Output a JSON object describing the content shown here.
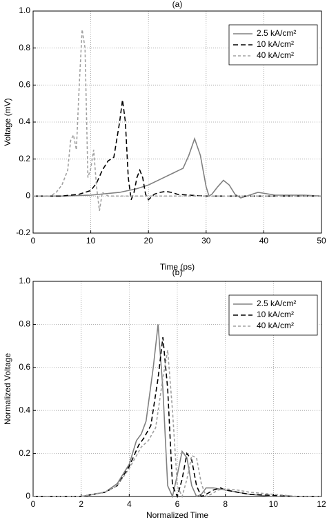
{
  "chart_data": [
    {
      "type": "line",
      "title": "(a)",
      "x_label": "Time (ps)",
      "y_label": "Voltage (mV)",
      "xlim": [
        0,
        50
      ],
      "xticks": [
        0,
        10,
        20,
        30,
        40,
        50
      ],
      "ylim": [
        -0.2,
        1.0
      ],
      "yticks": [
        -0.2,
        0,
        0.2,
        0.4,
        0.6,
        0.8,
        {
          "value": 1.0,
          "label": "1.0"
        }
      ],
      "grid": true,
      "legend": "upper right",
      "series": [
        {
          "name": "2.5 kA/cm²",
          "color": "#808080",
          "line_style": "solid",
          "x": [
            0,
            5,
            10,
            15,
            18,
            20,
            22,
            24,
            26,
            27,
            28,
            29,
            30,
            30.5,
            31,
            32,
            33,
            34,
            35,
            36,
            37,
            38,
            39,
            40,
            42,
            45,
            47,
            50
          ],
          "values": [
            0,
            0,
            0.005,
            0.02,
            0.04,
            0.06,
            0.09,
            0.12,
            0.15,
            0.22,
            0.31,
            0.22,
            0.05,
            0,
            0.01,
            0.05,
            0.085,
            0.06,
            0.01,
            -0.01,
            0,
            0.01,
            0.02,
            0.015,
            0.005,
            0.005,
            0.005,
            0
          ]
        },
        {
          "name": "10 kA/cm²",
          "color": "#000000",
          "line_style": "dashed",
          "x": [
            0,
            5,
            8,
            10,
            11,
            12,
            13,
            14,
            15,
            15.5,
            16,
            16.5,
            17,
            17.5,
            18,
            18.5,
            19,
            19.5,
            20,
            21,
            22,
            23,
            24,
            25,
            27,
            30,
            35,
            40,
            50
          ],
          "values": [
            0,
            0,
            0.01,
            0.03,
            0.07,
            0.14,
            0.19,
            0.21,
            0.4,
            0.52,
            0.4,
            0.1,
            -0.02,
            0.02,
            0.1,
            0.14,
            0.1,
            0.01,
            -0.02,
            0.01,
            0.02,
            0.025,
            0.02,
            0.01,
            0.005,
            0,
            0,
            0,
            0
          ]
        },
        {
          "name": "40 kA/cm²",
          "color": "#a0a0a0",
          "line_style": "short-dashed",
          "x": [
            0,
            3,
            4,
            5,
            6,
            6.5,
            7,
            7.5,
            8,
            8.5,
            9,
            9.5,
            10,
            10.5,
            11,
            11.5,
            12,
            13,
            15,
            20,
            50
          ],
          "values": [
            0,
            0,
            0.02,
            0.06,
            0.14,
            0.3,
            0.33,
            0.25,
            0.6,
            0.9,
            0.8,
            0.1,
            0.15,
            0.25,
            0.05,
            -0.08,
            0.02,
            0,
            0,
            0,
            0
          ]
        }
      ]
    },
    {
      "type": "line",
      "title": "(b)",
      "x_label": "Normalized Time",
      "y_label": "Normalized Voltage",
      "xlim": [
        0,
        12
      ],
      "xticks": [
        0,
        2,
        4,
        6,
        8,
        10,
        12
      ],
      "ylim": [
        0,
        1.0
      ],
      "yticks": [
        0,
        0.2,
        0.4,
        0.6,
        0.8,
        {
          "value": 1.0,
          "label": "1.0"
        }
      ],
      "grid": true,
      "legend": "upper right",
      "series": [
        {
          "name": "2.5 kA/cm²",
          "color": "#808080",
          "line_style": "solid",
          "x": [
            0,
            2,
            3,
            3.5,
            4,
            4.3,
            4.5,
            4.7,
            5,
            5.2,
            5.4,
            5.6,
            5.8,
            6,
            6.2,
            6.4,
            6.6,
            6.8,
            7,
            7.2,
            7.5,
            8,
            9,
            10,
            12
          ],
          "values": [
            0,
            0,
            0.02,
            0.06,
            0.15,
            0.26,
            0.29,
            0.35,
            0.6,
            0.8,
            0.5,
            0.05,
            0,
            0.1,
            0.21,
            0.18,
            0.05,
            0,
            0.01,
            0.04,
            0.04,
            0.03,
            0.01,
            0,
            0
          ]
        },
        {
          "name": "10 kA/cm²",
          "color": "#000000",
          "line_style": "dashed",
          "x": [
            0,
            2,
            3,
            3.5,
            4,
            4.4,
            4.6,
            4.9,
            5.2,
            5.4,
            5.6,
            5.8,
            6,
            6.2,
            6.4,
            6.6,
            6.8,
            7,
            7.2,
            7.5,
            7.8,
            8,
            9,
            10,
            11,
            12
          ],
          "values": [
            0,
            0,
            0.02,
            0.05,
            0.14,
            0.24,
            0.27,
            0.33,
            0.55,
            0.74,
            0.5,
            0.05,
            0,
            0.08,
            0.2,
            0.17,
            0.05,
            0,
            0.01,
            0.03,
            0.04,
            0.03,
            0.01,
            0.005,
            0,
            0
          ]
        },
        {
          "name": "40 kA/cm²",
          "color": "#a0a0a0",
          "line_style": "short-dashed",
          "x": [
            0,
            2,
            3,
            3.5,
            4,
            4.5,
            4.8,
            5.1,
            5.4,
            5.6,
            5.8,
            6,
            6.2,
            6.4,
            6.6,
            6.8,
            7,
            7.2,
            7.4,
            7.7,
            8,
            8.5,
            9,
            10,
            11,
            12
          ],
          "values": [
            0,
            0,
            0.02,
            0.05,
            0.13,
            0.23,
            0.26,
            0.32,
            0.55,
            0.68,
            0.4,
            0.05,
            0,
            0.08,
            0.19,
            0.18,
            0.06,
            0,
            0.01,
            0.03,
            0.035,
            0.03,
            0.02,
            0.01,
            0,
            0
          ]
        }
      ]
    }
  ]
}
